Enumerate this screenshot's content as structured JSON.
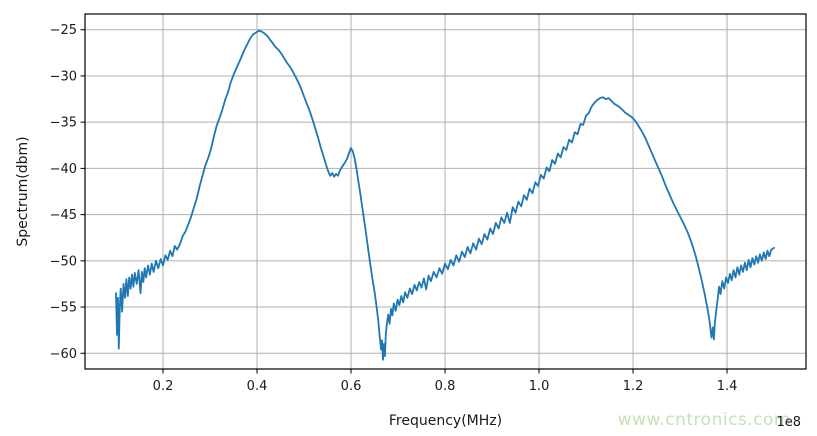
{
  "watermark": {
    "text": "www.cntronics.com",
    "color": "#c5e0b4"
  },
  "chart_data": {
    "type": "line",
    "title": "",
    "xlabel": "Frequency(MHz)",
    "ylabel": "Spectrum(dbm)",
    "x_offset_label": "1e8",
    "xlim": [
      0.034,
      1.568
    ],
    "ylim": [
      -61.7,
      -23.3
    ],
    "xticks": [
      0.2,
      0.4,
      0.6,
      0.8,
      1.0,
      1.2,
      1.4
    ],
    "xtick_labels": [
      "0.2",
      "0.4",
      "0.6",
      "0.8",
      "1.0",
      "1.2",
      "1.4"
    ],
    "yticks": [
      -25,
      -30,
      -35,
      -40,
      -45,
      -50,
      -55,
      -60
    ],
    "ytick_labels": [
      "−25",
      "−30",
      "−35",
      "−40",
      "−45",
      "−50",
      "−55",
      "−60"
    ],
    "grid": true,
    "legend": "none",
    "line_color": "#1f77b4",
    "grid_color": "#b0b0b0",
    "spine_color": "#000000",
    "text_color": "#1a1a1a",
    "series": [
      {
        "name": "spectrum",
        "points": [
          [
            0.1,
            -53.5
          ],
          [
            0.102,
            -58.0
          ],
          [
            0.104,
            -54.0
          ],
          [
            0.106,
            -59.5
          ],
          [
            0.108,
            -55.0
          ],
          [
            0.11,
            -53.0
          ],
          [
            0.113,
            -55.5
          ],
          [
            0.116,
            -52.5
          ],
          [
            0.119,
            -54.0
          ],
          [
            0.122,
            -52.0
          ],
          [
            0.125,
            -53.8
          ],
          [
            0.128,
            -51.8
          ],
          [
            0.131,
            -53.0
          ],
          [
            0.134,
            -51.5
          ],
          [
            0.137,
            -52.8
          ],
          [
            0.14,
            -51.3
          ],
          [
            0.144,
            -52.5
          ],
          [
            0.148,
            -51.0
          ],
          [
            0.152,
            -53.5
          ],
          [
            0.155,
            -51.2
          ],
          [
            0.158,
            -52.3
          ],
          [
            0.161,
            -50.8
          ],
          [
            0.164,
            -51.8
          ],
          [
            0.168,
            -50.5
          ],
          [
            0.172,
            -51.5
          ],
          [
            0.176,
            -50.3
          ],
          [
            0.18,
            -51.2
          ],
          [
            0.185,
            -50.0
          ],
          [
            0.19,
            -50.8
          ],
          [
            0.195,
            -49.8
          ],
          [
            0.2,
            -50.5
          ],
          [
            0.205,
            -49.4
          ],
          [
            0.21,
            -49.9
          ],
          [
            0.215,
            -48.9
          ],
          [
            0.22,
            -49.5
          ],
          [
            0.225,
            -48.4
          ],
          [
            0.23,
            -48.8
          ],
          [
            0.236,
            -48.2
          ],
          [
            0.242,
            -47.3
          ],
          [
            0.248,
            -46.8
          ],
          [
            0.254,
            -46.0
          ],
          [
            0.26,
            -45.2
          ],
          [
            0.266,
            -44.2
          ],
          [
            0.272,
            -43.2
          ],
          [
            0.278,
            -41.9
          ],
          [
            0.284,
            -40.8
          ],
          [
            0.29,
            -39.7
          ],
          [
            0.296,
            -38.9
          ],
          [
            0.302,
            -37.9
          ],
          [
            0.308,
            -36.6
          ],
          [
            0.314,
            -35.4
          ],
          [
            0.32,
            -34.6
          ],
          [
            0.326,
            -33.7
          ],
          [
            0.332,
            -32.6
          ],
          [
            0.338,
            -31.8
          ],
          [
            0.344,
            -30.7
          ],
          [
            0.35,
            -29.9
          ],
          [
            0.356,
            -29.2
          ],
          [
            0.362,
            -28.5
          ],
          [
            0.368,
            -27.8
          ],
          [
            0.374,
            -27.1
          ],
          [
            0.38,
            -26.5
          ],
          [
            0.386,
            -25.9
          ],
          [
            0.392,
            -25.5
          ],
          [
            0.398,
            -25.3
          ],
          [
            0.404,
            -25.1
          ],
          [
            0.41,
            -25.2
          ],
          [
            0.416,
            -25.4
          ],
          [
            0.422,
            -25.7
          ],
          [
            0.428,
            -26.1
          ],
          [
            0.434,
            -26.5
          ],
          [
            0.44,
            -26.9
          ],
          [
            0.446,
            -27.2
          ],
          [
            0.452,
            -27.6
          ],
          [
            0.458,
            -28.1
          ],
          [
            0.464,
            -28.6
          ],
          [
            0.47,
            -29.0
          ],
          [
            0.476,
            -29.5
          ],
          [
            0.482,
            -30.1
          ],
          [
            0.488,
            -30.7
          ],
          [
            0.494,
            -31.4
          ],
          [
            0.5,
            -32.2
          ],
          [
            0.506,
            -33.0
          ],
          [
            0.512,
            -33.8
          ],
          [
            0.518,
            -34.7
          ],
          [
            0.524,
            -35.7
          ],
          [
            0.53,
            -36.7
          ],
          [
            0.536,
            -37.8
          ],
          [
            0.542,
            -38.8
          ],
          [
            0.548,
            -39.8
          ],
          [
            0.552,
            -40.4
          ],
          [
            0.556,
            -40.8
          ],
          [
            0.56,
            -40.5
          ],
          [
            0.564,
            -40.9
          ],
          [
            0.568,
            -40.6
          ],
          [
            0.572,
            -40.8
          ],
          [
            0.576,
            -40.3
          ],
          [
            0.58,
            -39.9
          ],
          [
            0.584,
            -39.6
          ],
          [
            0.588,
            -39.3
          ],
          [
            0.592,
            -38.9
          ],
          [
            0.596,
            -38.3
          ],
          [
            0.6,
            -37.8
          ],
          [
            0.604,
            -38.2
          ],
          [
            0.608,
            -39.0
          ],
          [
            0.612,
            -40.2
          ],
          [
            0.616,
            -41.5
          ],
          [
            0.62,
            -42.8
          ],
          [
            0.625,
            -44.6
          ],
          [
            0.63,
            -46.3
          ],
          [
            0.635,
            -48.2
          ],
          [
            0.64,
            -50.0
          ],
          [
            0.645,
            -51.8
          ],
          [
            0.65,
            -53.3
          ],
          [
            0.654,
            -54.8
          ],
          [
            0.658,
            -56.5
          ],
          [
            0.661,
            -58.2
          ],
          [
            0.664,
            -59.6
          ],
          [
            0.666,
            -58.6
          ],
          [
            0.668,
            -60.7
          ],
          [
            0.67,
            -59.0
          ],
          [
            0.672,
            -60.3
          ],
          [
            0.674,
            -58.0
          ],
          [
            0.676,
            -57.0
          ],
          [
            0.679,
            -55.8
          ],
          [
            0.682,
            -56.8
          ],
          [
            0.685,
            -55.2
          ],
          [
            0.688,
            -55.9
          ],
          [
            0.691,
            -54.6
          ],
          [
            0.695,
            -55.4
          ],
          [
            0.699,
            -54.2
          ],
          [
            0.703,
            -54.8
          ],
          [
            0.707,
            -53.8
          ],
          [
            0.711,
            -54.5
          ],
          [
            0.715,
            -53.4
          ],
          [
            0.72,
            -54.0
          ],
          [
            0.725,
            -53.0
          ],
          [
            0.73,
            -53.6
          ],
          [
            0.735,
            -52.6
          ],
          [
            0.74,
            -53.2
          ],
          [
            0.745,
            -52.3
          ],
          [
            0.75,
            -52.9
          ],
          [
            0.755,
            -51.9
          ],
          [
            0.76,
            -53.1
          ],
          [
            0.765,
            -51.6
          ],
          [
            0.77,
            -52.2
          ],
          [
            0.776,
            -51.2
          ],
          [
            0.782,
            -51.8
          ],
          [
            0.788,
            -50.8
          ],
          [
            0.794,
            -51.4
          ],
          [
            0.8,
            -50.3
          ],
          [
            0.806,
            -50.9
          ],
          [
            0.812,
            -49.9
          ],
          [
            0.818,
            -50.5
          ],
          [
            0.824,
            -49.4
          ],
          [
            0.83,
            -50.1
          ],
          [
            0.836,
            -49.0
          ],
          [
            0.842,
            -49.6
          ],
          [
            0.848,
            -48.5
          ],
          [
            0.854,
            -49.2
          ],
          [
            0.86,
            -48.1
          ],
          [
            0.866,
            -48.8
          ],
          [
            0.872,
            -47.6
          ],
          [
            0.878,
            -48.2
          ],
          [
            0.884,
            -47.1
          ],
          [
            0.89,
            -47.7
          ],
          [
            0.896,
            -46.5
          ],
          [
            0.902,
            -47.1
          ],
          [
            0.908,
            -45.9
          ],
          [
            0.914,
            -46.5
          ],
          [
            0.92,
            -45.3
          ],
          [
            0.926,
            -45.9
          ],
          [
            0.932,
            -44.8
          ],
          [
            0.938,
            -45.9
          ],
          [
            0.944,
            -44.2
          ],
          [
            0.95,
            -44.8
          ],
          [
            0.956,
            -43.6
          ],
          [
            0.962,
            -44.1
          ],
          [
            0.968,
            -42.9
          ],
          [
            0.974,
            -43.4
          ],
          [
            0.98,
            -42.2
          ],
          [
            0.986,
            -42.7
          ],
          [
            0.992,
            -41.5
          ],
          [
            0.998,
            -41.9
          ],
          [
            1.004,
            -40.7
          ],
          [
            1.01,
            -41.1
          ],
          [
            1.016,
            -39.9
          ],
          [
            1.022,
            -40.3
          ],
          [
            1.028,
            -39.1
          ],
          [
            1.034,
            -39.5
          ],
          [
            1.04,
            -38.4
          ],
          [
            1.046,
            -38.8
          ],
          [
            1.052,
            -37.7
          ],
          [
            1.058,
            -38.0
          ],
          [
            1.064,
            -36.9
          ],
          [
            1.07,
            -37.2
          ],
          [
            1.076,
            -36.1
          ],
          [
            1.082,
            -36.3
          ],
          [
            1.088,
            -35.2
          ],
          [
            1.094,
            -35.3
          ],
          [
            1.1,
            -34.3
          ],
          [
            1.106,
            -34.0
          ],
          [
            1.112,
            -33.3
          ],
          [
            1.118,
            -32.9
          ],
          [
            1.124,
            -32.6
          ],
          [
            1.13,
            -32.4
          ],
          [
            1.136,
            -32.3
          ],
          [
            1.142,
            -32.5
          ],
          [
            1.148,
            -32.4
          ],
          [
            1.154,
            -32.7
          ],
          [
            1.16,
            -33.0
          ],
          [
            1.166,
            -33.2
          ],
          [
            1.172,
            -33.4
          ],
          [
            1.178,
            -33.7
          ],
          [
            1.184,
            -34.0
          ],
          [
            1.19,
            -34.2
          ],
          [
            1.196,
            -34.4
          ],
          [
            1.202,
            -34.7
          ],
          [
            1.208,
            -35.1
          ],
          [
            1.214,
            -35.6
          ],
          [
            1.22,
            -36.1
          ],
          [
            1.226,
            -36.7
          ],
          [
            1.232,
            -37.4
          ],
          [
            1.238,
            -38.1
          ],
          [
            1.244,
            -38.8
          ],
          [
            1.25,
            -39.5
          ],
          [
            1.256,
            -40.2
          ],
          [
            1.262,
            -40.9
          ],
          [
            1.268,
            -41.7
          ],
          [
            1.274,
            -42.4
          ],
          [
            1.28,
            -43.1
          ],
          [
            1.286,
            -43.8
          ],
          [
            1.292,
            -44.4
          ],
          [
            1.298,
            -45.0
          ],
          [
            1.304,
            -45.6
          ],
          [
            1.31,
            -46.2
          ],
          [
            1.316,
            -46.9
          ],
          [
            1.322,
            -47.7
          ],
          [
            1.328,
            -48.6
          ],
          [
            1.334,
            -49.6
          ],
          [
            1.34,
            -50.8
          ],
          [
            1.346,
            -52.1
          ],
          [
            1.352,
            -53.5
          ],
          [
            1.357,
            -54.8
          ],
          [
            1.361,
            -55.9
          ],
          [
            1.364,
            -57.0
          ],
          [
            1.367,
            -58.3
          ],
          [
            1.37,
            -57.2
          ],
          [
            1.372,
            -58.5
          ],
          [
            1.374,
            -56.8
          ],
          [
            1.377,
            -55.4
          ],
          [
            1.38,
            -54.2
          ],
          [
            1.383,
            -52.8
          ],
          [
            1.386,
            -53.6
          ],
          [
            1.39,
            -52.2
          ],
          [
            1.394,
            -53.0
          ],
          [
            1.398,
            -51.8
          ],
          [
            1.402,
            -52.4
          ],
          [
            1.406,
            -51.4
          ],
          [
            1.41,
            -52.1
          ],
          [
            1.414,
            -51.0
          ],
          [
            1.418,
            -51.8
          ],
          [
            1.422,
            -50.7
          ],
          [
            1.426,
            -51.5
          ],
          [
            1.43,
            -50.5
          ],
          [
            1.434,
            -51.2
          ],
          [
            1.438,
            -50.2
          ],
          [
            1.442,
            -51.0
          ],
          [
            1.446,
            -49.9
          ],
          [
            1.45,
            -50.7
          ],
          [
            1.454,
            -49.7
          ],
          [
            1.458,
            -50.4
          ],
          [
            1.462,
            -49.5
          ],
          [
            1.466,
            -50.2
          ],
          [
            1.47,
            -49.3
          ],
          [
            1.474,
            -50.0
          ],
          [
            1.478,
            -49.1
          ],
          [
            1.482,
            -49.8
          ],
          [
            1.486,
            -48.9
          ],
          [
            1.49,
            -49.5
          ],
          [
            1.494,
            -48.8
          ],
          [
            1.5,
            -48.6
          ]
        ]
      }
    ]
  }
}
